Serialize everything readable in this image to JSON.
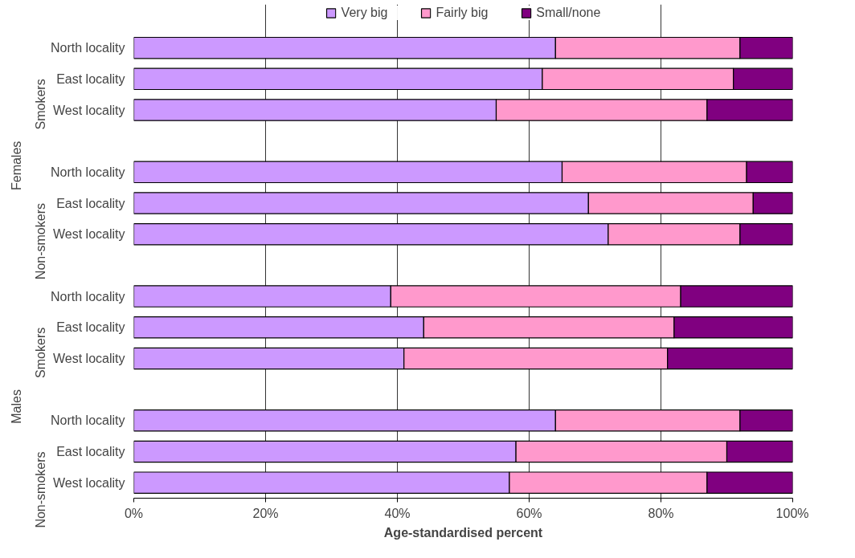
{
  "chart_data": {
    "type": "bar",
    "orientation": "horizontal",
    "stacked": true,
    "categories": [
      "North locality",
      "East locality",
      "West locality",
      null,
      "North locality",
      "East locality",
      "West locality",
      null,
      "North locality",
      "East locality",
      "West locality",
      null,
      "North locality",
      "East locality",
      "West locality"
    ],
    "series": [
      {
        "name": "Very big",
        "color": "#cc99ff",
        "values": [
          64,
          62,
          55,
          null,
          65,
          69,
          72,
          null,
          39,
          44,
          41,
          null,
          64,
          58,
          57
        ]
      },
      {
        "name": "Fairly big",
        "color": "#ff99cc",
        "values": [
          28,
          29,
          32,
          null,
          28,
          25,
          20,
          null,
          44,
          38,
          40,
          null,
          28,
          32,
          30
        ]
      },
      {
        "name": "Small/none",
        "color": "#800080",
        "values": [
          8,
          9,
          13,
          null,
          7,
          6,
          8,
          null,
          17,
          18,
          19,
          null,
          8,
          10,
          13
        ]
      }
    ],
    "xlabel": "Age-standardised percent",
    "xlim": [
      0,
      100
    ],
    "xticks": [
      {
        "value": 0,
        "label": "0%"
      },
      {
        "value": 20,
        "label": "20%"
      },
      {
        "value": 40,
        "label": "40%"
      },
      {
        "value": 60,
        "label": "60%"
      },
      {
        "value": 80,
        "label": "80%"
      },
      {
        "value": 100,
        "label": "100%"
      }
    ],
    "annotations": [
      "Smokers",
      "Non-smokers",
      "Smokers",
      "Non-smokers",
      "Females",
      "Males"
    ],
    "grid": "x",
    "legend": "top"
  }
}
